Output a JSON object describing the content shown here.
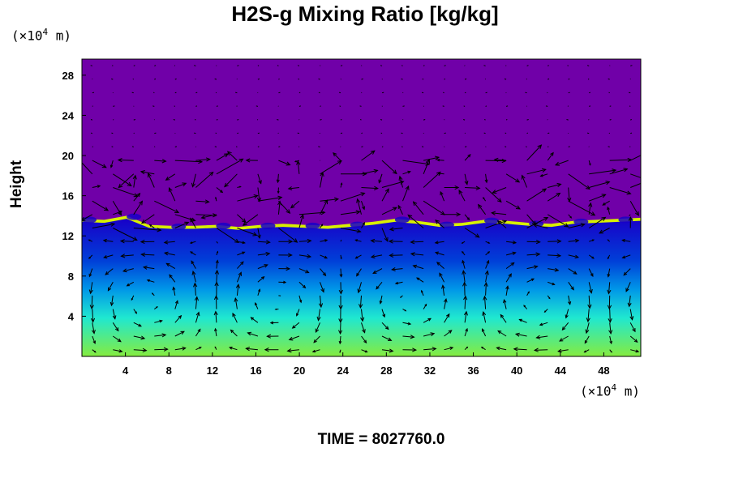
{
  "chart_data": {
    "type": "heatmap",
    "title": "H2S-g Mixing Ratio [kg/kg]",
    "ylabel": "Height",
    "y_unit": {
      "prefix": "(×10",
      "exp": "4",
      "suffix": " m)"
    },
    "x_unit": {
      "prefix": "(×10",
      "exp": "4",
      "suffix": " m)"
    },
    "x_ticks": [
      "4",
      "8",
      "12",
      "16",
      "20",
      "24",
      "28",
      "32",
      "36",
      "40",
      "44",
      "48"
    ],
    "y_ticks": [
      "4",
      "8",
      "12",
      "16",
      "20",
      "24",
      "28"
    ],
    "xlim": [
      0,
      51.4
    ],
    "ylim": [
      0,
      29.6
    ],
    "time_label": "TIME = 8027760.0",
    "interface_height": [
      13.3,
      13.2,
      13.6,
      12.7,
      12.6,
      12.6,
      12.7,
      12.5,
      12.7,
      12.8,
      12.7,
      12.6,
      12.8,
      13.0,
      13.3,
      13.1,
      12.8,
      12.9,
      13.2,
      13.1,
      12.9,
      12.8,
      13.1,
      13.2,
      13.3,
      13.4
    ],
    "colors": {
      "upper": "#7000a8",
      "transition_dark": "#1800c8",
      "transition_mid": "#0098e8",
      "transition_cyan": "#20e8d0",
      "lower_green": "#90ec30",
      "lower": "#d8f000",
      "arrows": "#000000"
    }
  }
}
